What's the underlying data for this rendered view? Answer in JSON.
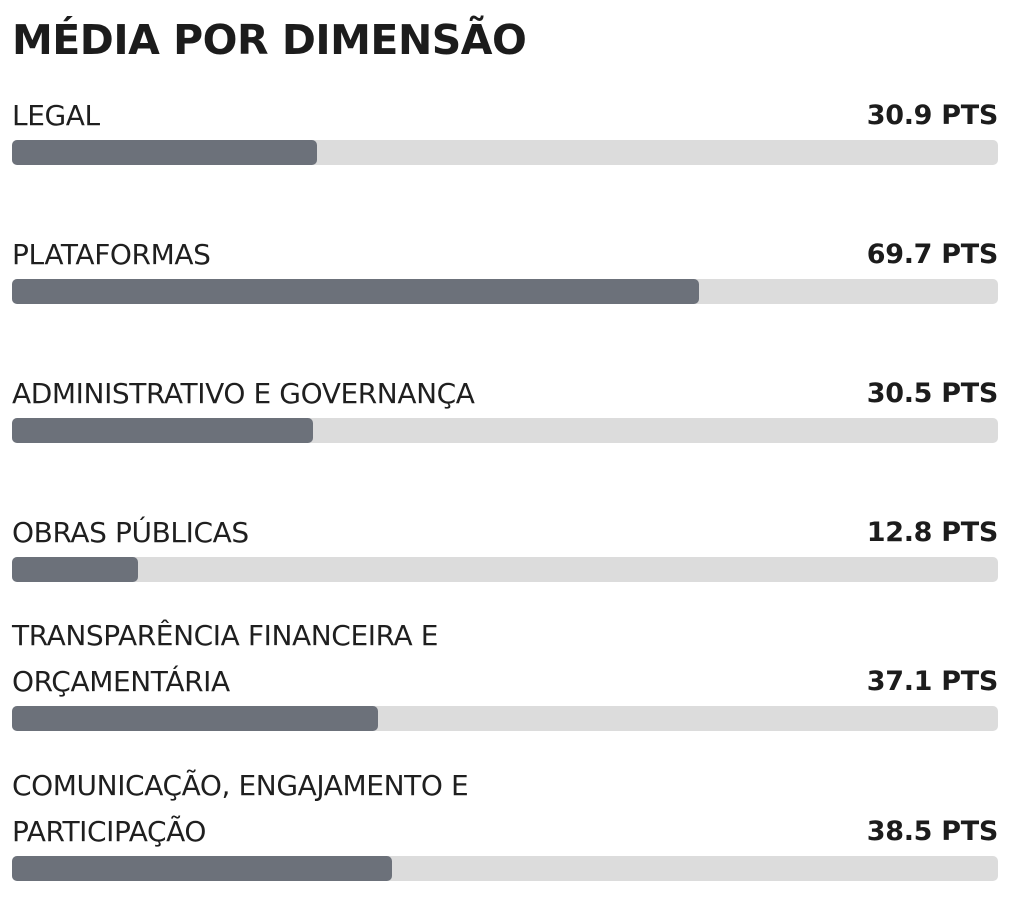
{
  "title": "MÉDIA POR DIMENSÃO",
  "colors": {
    "bar_fill": "#6c717a",
    "bar_track": "#dcdcdc",
    "text": "#1f1f1f"
  },
  "chart_data": {
    "type": "bar",
    "orientation": "horizontal",
    "title": "MÉDIA POR DIMENSÃO",
    "unit": "PTS",
    "xlim": [
      0,
      100
    ],
    "categories": [
      "LEGAL",
      "PLATAFORMAS",
      "ADMINISTRATIVO E GOVERNANÇA",
      "OBRAS PÚBLICAS",
      "TRANSPARÊNCIA FINANCEIRA E ORÇAMENTÁRIA",
      "COMUNICAÇÃO, ENGAJAMENTO E PARTICIPAÇÃO"
    ],
    "values": [
      30.9,
      69.7,
      30.5,
      12.8,
      37.1,
      38.5
    ],
    "value_labels": [
      "30.9 PTS",
      "69.7 PTS",
      "30.5 PTS",
      "12.8 PTS",
      "37.1 PTS",
      "38.5 PTS"
    ]
  }
}
